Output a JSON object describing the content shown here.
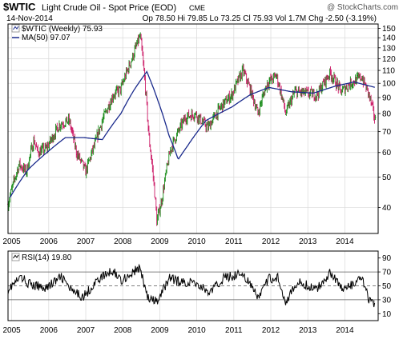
{
  "header": {
    "symbol": "$WTIC",
    "description": "Light Crude Oil - Spot Price (EOD)",
    "exchange": "CME",
    "date": "14-Nov-2014",
    "ohlc_text": "Op 78.50  Hi 79.85  Lo 73.25  Cl 75.93  Vol 1.7M  Chg -2.50 (-3.19%)",
    "watermark": "@ StockCharts.com"
  },
  "colors": {
    "up": "#1a8c1a",
    "down": "#cc1a66",
    "ma": "#1a2a8c",
    "rsi": "#000000",
    "rsi_fill": "#999999",
    "grid": "#d9d9d9",
    "axis": "#000000"
  },
  "chart_data": [
    {
      "type": "line",
      "name": "price-panel",
      "legend": [
        {
          "label": "$WTIC (Weekly) 75.93"
        },
        {
          "label": "MA(50) 97.07"
        }
      ],
      "x_ticks": [
        "2005",
        "2006",
        "2007",
        "2008",
        "2009",
        "2010",
        "2011",
        "2012",
        "2013",
        "2014"
      ],
      "y_ticks": [
        40,
        50,
        60,
        70,
        80,
        90,
        100,
        110,
        120,
        130,
        140,
        150
      ],
      "yscale": "log",
      "ylim": [
        33,
        155
      ],
      "xlim": [
        2004.95,
        2014.95
      ],
      "price_anchors": [
        {
          "x": 2004.95,
          "y": 41
        },
        {
          "x": 2005.25,
          "y": 55
        },
        {
          "x": 2005.45,
          "y": 52
        },
        {
          "x": 2005.65,
          "y": 66
        },
        {
          "x": 2005.75,
          "y": 60
        },
        {
          "x": 2006.0,
          "y": 62
        },
        {
          "x": 2006.35,
          "y": 74
        },
        {
          "x": 2006.6,
          "y": 76
        },
        {
          "x": 2006.8,
          "y": 60
        },
        {
          "x": 2007.05,
          "y": 52
        },
        {
          "x": 2007.3,
          "y": 64
        },
        {
          "x": 2007.5,
          "y": 76
        },
        {
          "x": 2007.8,
          "y": 92
        },
        {
          "x": 2008.0,
          "y": 96
        },
        {
          "x": 2008.3,
          "y": 120
        },
        {
          "x": 2008.52,
          "y": 142
        },
        {
          "x": 2008.75,
          "y": 68
        },
        {
          "x": 2008.97,
          "y": 36
        },
        {
          "x": 2009.1,
          "y": 42
        },
        {
          "x": 2009.35,
          "y": 62
        },
        {
          "x": 2009.55,
          "y": 70
        },
        {
          "x": 2009.75,
          "y": 78
        },
        {
          "x": 2010.0,
          "y": 80
        },
        {
          "x": 2010.35,
          "y": 72
        },
        {
          "x": 2010.7,
          "y": 84
        },
        {
          "x": 2011.0,
          "y": 92
        },
        {
          "x": 2011.3,
          "y": 110
        },
        {
          "x": 2011.7,
          "y": 80
        },
        {
          "x": 2011.95,
          "y": 100
        },
        {
          "x": 2012.2,
          "y": 106
        },
        {
          "x": 2012.45,
          "y": 80
        },
        {
          "x": 2012.7,
          "y": 94
        },
        {
          "x": 2013.0,
          "y": 93
        },
        {
          "x": 2013.3,
          "y": 92
        },
        {
          "x": 2013.65,
          "y": 108
        },
        {
          "x": 2013.95,
          "y": 94
        },
        {
          "x": 2014.2,
          "y": 100
        },
        {
          "x": 2014.5,
          "y": 105
        },
        {
          "x": 2014.7,
          "y": 92
        },
        {
          "x": 2014.87,
          "y": 76
        }
      ],
      "ma_anchors": [
        {
          "x": 2005.0,
          "y": 43
        },
        {
          "x": 2005.5,
          "y": 53
        },
        {
          "x": 2006.0,
          "y": 60
        },
        {
          "x": 2006.5,
          "y": 67
        },
        {
          "x": 2007.0,
          "y": 67
        },
        {
          "x": 2007.5,
          "y": 66
        },
        {
          "x": 2008.0,
          "y": 80
        },
        {
          "x": 2008.35,
          "y": 95
        },
        {
          "x": 2008.7,
          "y": 109
        },
        {
          "x": 2009.0,
          "y": 88
        },
        {
          "x": 2009.3,
          "y": 68
        },
        {
          "x": 2009.55,
          "y": 57
        },
        {
          "x": 2009.8,
          "y": 63
        },
        {
          "x": 2010.3,
          "y": 76
        },
        {
          "x": 2011.0,
          "y": 84
        },
        {
          "x": 2011.5,
          "y": 92
        },
        {
          "x": 2012.0,
          "y": 97
        },
        {
          "x": 2012.6,
          "y": 94
        },
        {
          "x": 2013.2,
          "y": 93
        },
        {
          "x": 2013.8,
          "y": 98
        },
        {
          "x": 2014.3,
          "y": 101
        },
        {
          "x": 2014.87,
          "y": 97
        }
      ]
    },
    {
      "type": "line",
      "name": "rsi-panel",
      "legend": [
        {
          "label": "RSI(14) 19.80"
        }
      ],
      "x_ticks": [
        "2005",
        "2006",
        "2007",
        "2008",
        "2009",
        "2010",
        "2011",
        "2012",
        "2013",
        "2014"
      ],
      "y_ticks": [
        10,
        30,
        50,
        70,
        90
      ],
      "ylim": [
        0,
        100
      ],
      "overbought": 70,
      "oversold": 30,
      "center": 50,
      "rsi_anchors": [
        {
          "x": 2004.95,
          "y": 45
        },
        {
          "x": 2005.3,
          "y": 62
        },
        {
          "x": 2005.6,
          "y": 50
        },
        {
          "x": 2006.0,
          "y": 48
        },
        {
          "x": 2006.4,
          "y": 63
        },
        {
          "x": 2006.7,
          "y": 40
        },
        {
          "x": 2007.0,
          "y": 35
        },
        {
          "x": 2007.4,
          "y": 60
        },
        {
          "x": 2007.8,
          "y": 72
        },
        {
          "x": 2008.0,
          "y": 58
        },
        {
          "x": 2008.3,
          "y": 68
        },
        {
          "x": 2008.5,
          "y": 76
        },
        {
          "x": 2008.75,
          "y": 30
        },
        {
          "x": 2009.0,
          "y": 27
        },
        {
          "x": 2009.3,
          "y": 62
        },
        {
          "x": 2009.6,
          "y": 55
        },
        {
          "x": 2010.0,
          "y": 55
        },
        {
          "x": 2010.4,
          "y": 40
        },
        {
          "x": 2010.8,
          "y": 62
        },
        {
          "x": 2011.3,
          "y": 68
        },
        {
          "x": 2011.7,
          "y": 33
        },
        {
          "x": 2012.0,
          "y": 60
        },
        {
          "x": 2012.25,
          "y": 62
        },
        {
          "x": 2012.45,
          "y": 28
        },
        {
          "x": 2012.8,
          "y": 55
        },
        {
          "x": 2013.3,
          "y": 45
        },
        {
          "x": 2013.65,
          "y": 70
        },
        {
          "x": 2014.0,
          "y": 45
        },
        {
          "x": 2014.3,
          "y": 52
        },
        {
          "x": 2014.5,
          "y": 62
        },
        {
          "x": 2014.7,
          "y": 30
        },
        {
          "x": 2014.87,
          "y": 20
        }
      ]
    }
  ]
}
